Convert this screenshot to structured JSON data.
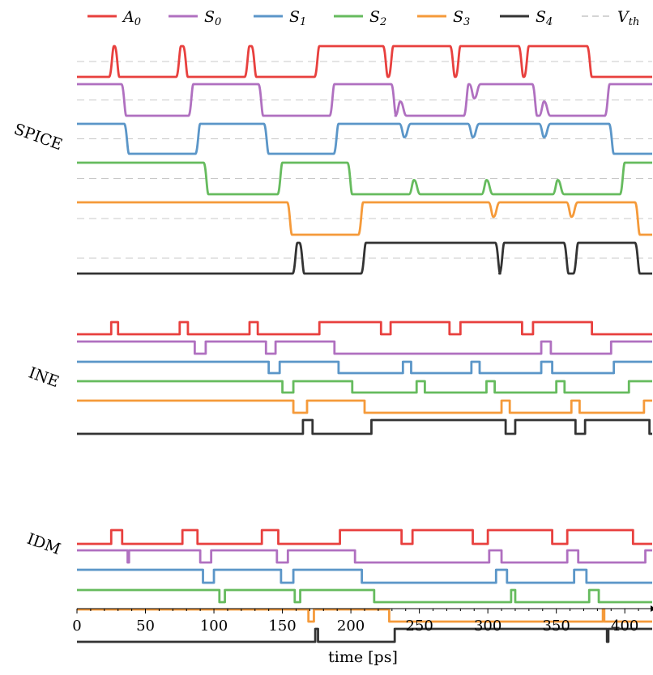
{
  "chart_data": {
    "type": "line",
    "xlabel": "time [ps]",
    "xlim": [
      0,
      420
    ],
    "x_ticks": [
      "0",
      "50",
      "100",
      "150",
      "200",
      "250",
      "300",
      "350",
      "400"
    ],
    "legend_placement": "top",
    "legend": [
      {
        "key": "A0",
        "base": "A",
        "sub": "0",
        "color": "#e8403e",
        "dashed": false
      },
      {
        "key": "S0",
        "base": "S",
        "sub": "0",
        "color": "#b070c0",
        "dashed": false
      },
      {
        "key": "S1",
        "base": "S",
        "sub": "1",
        "color": "#5b96c8",
        "dashed": false
      },
      {
        "key": "S2",
        "base": "S",
        "sub": "2",
        "color": "#66bb5e",
        "dashed": false
      },
      {
        "key": "S3",
        "base": "S",
        "sub": "3",
        "color": "#f59a3a",
        "dashed": false
      },
      {
        "key": "S4",
        "base": "S",
        "sub": "4",
        "color": "#333333",
        "dashed": false
      },
      {
        "key": "Vth",
        "base": "V",
        "sub": "th",
        "color": "#bbbbbb",
        "dashed": true
      }
    ],
    "panels": [
      {
        "name": "SPICE",
        "style": "analog",
        "signals": [
          {
            "key": "A0",
            "initial": 0,
            "transitions": [
              27,
              31,
              76,
              81,
              126,
              131,
              177,
              227,
              231,
              276,
              280,
              326,
              330,
              376
            ]
          },
          {
            "key": "S0",
            "initial": 1,
            "transitions": [
              36,
              85,
              136,
              188,
              233,
              236,
              286,
              290,
              336,
              341,
              389
            ],
            "glitch_at": [
              236,
              290,
              341
            ]
          },
          {
            "key": "S1",
            "initial": 1,
            "transitions": [
              38,
              90,
              140,
              191,
              239,
              289,
              341,
              392
            ],
            "glitch_at": [
              239,
              289,
              341
            ]
          },
          {
            "key": "S2",
            "initial": 1,
            "transitions": [
              96,
              150,
              201,
              246,
              299,
              351,
              400
            ],
            "glitch_at": [
              246,
              299,
              351
            ]
          },
          {
            "key": "S3",
            "initial": 1,
            "transitions": [
              157,
              209,
              304,
              361,
              411
            ],
            "glitch_at": [
              304,
              361
            ]
          },
          {
            "key": "S4",
            "initial": 0,
            "transitions": [
              161,
              166,
              211,
              309,
              312,
              359,
              366,
              411
            ]
          }
        ]
      },
      {
        "name": "INE",
        "style": "digital",
        "signals": [
          {
            "key": "A0",
            "initial": 0,
            "transitions": [
              25,
              30,
              75,
              81,
              126,
              132,
              177,
              222,
              229,
              272,
              280,
              325,
              333,
              376
            ]
          },
          {
            "key": "S0",
            "initial": 1,
            "transitions": [
              86,
              94,
              138,
              145,
              188,
              339,
              346,
              390
            ]
          },
          {
            "key": "S1",
            "initial": 1,
            "transitions": [
              140,
              148,
              191,
              238,
              244,
              288,
              294,
              339,
              347,
              392
            ]
          },
          {
            "key": "S2",
            "initial": 1,
            "transitions": [
              150,
              158,
              201,
              248,
              254,
              299,
              305,
              350,
              356,
              403
            ]
          },
          {
            "key": "S3",
            "initial": 1,
            "transitions": [
              158,
              168,
              210,
              310,
              316,
              361,
              367,
              414
            ]
          },
          {
            "key": "S4",
            "initial": 0,
            "transitions": [
              165,
              172,
              215,
              313,
              320,
              364,
              371,
              418
            ]
          }
        ]
      },
      {
        "name": "IDM",
        "style": "digital",
        "signals": [
          {
            "key": "A0",
            "initial": 0,
            "transitions": [
              25,
              33,
              77,
              88,
              135,
              147,
              192,
              237,
              245,
              289,
              300,
              347,
              358,
              406
            ]
          },
          {
            "key": "S0",
            "initial": 1,
            "transitions": [
              37,
              38,
              90,
              98,
              146,
              154,
              203,
              301,
              310,
              358,
              366,
              415
            ]
          },
          {
            "key": "S1",
            "initial": 1,
            "transitions": [
              92,
              100,
              149,
              158,
              208,
              306,
              314,
              363,
              372
            ]
          },
          {
            "key": "S2",
            "initial": 1,
            "transitions": [
              104,
              108,
              159,
              163,
              217,
              317,
              320,
              374,
              381
            ]
          },
          {
            "key": "S3",
            "initial": 1,
            "transitions": [
              169,
              173,
              228,
              384,
              385
            ]
          },
          {
            "key": "S4",
            "initial": 0,
            "transitions": [
              174,
              176,
              232,
              387,
              388
            ]
          }
        ]
      }
    ]
  }
}
